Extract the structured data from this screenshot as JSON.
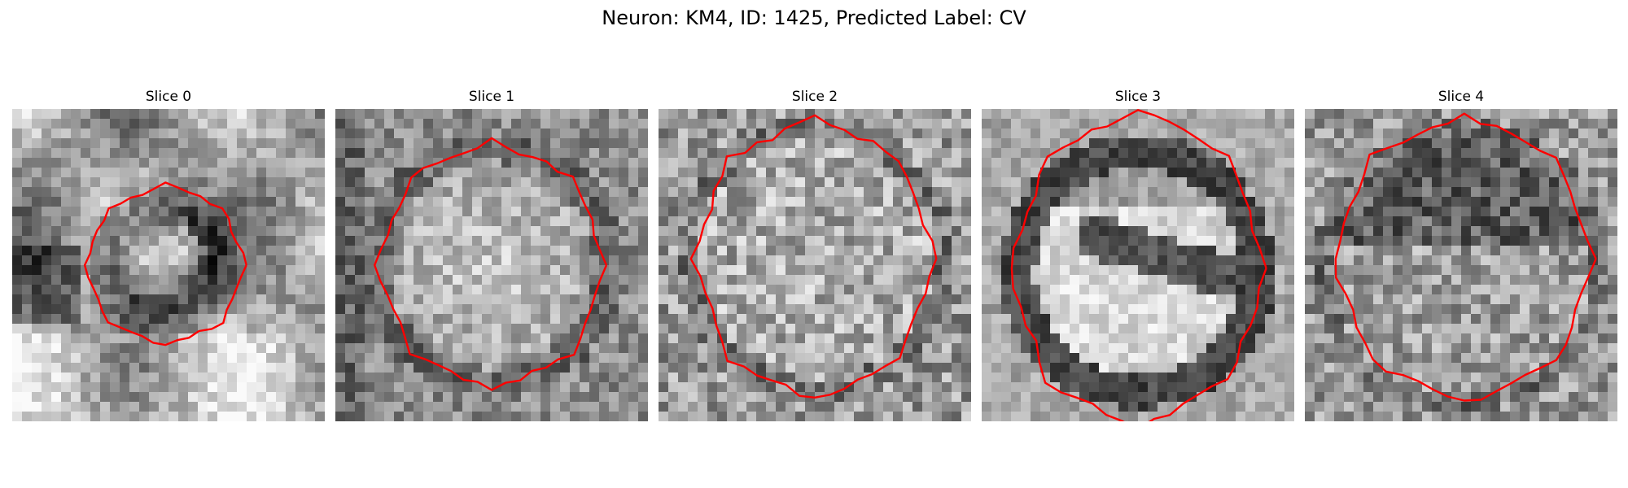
{
  "figure": {
    "title": "Neuron: KM4, ID: 1425, Predicted Label: CV",
    "panels": [
      {
        "label": "Slice 0",
        "image_description": "grayscale microscopy patch with a small dark ring-shaped object outlined in red",
        "outline_color": "#ff0000"
      },
      {
        "label": "Slice 1",
        "image_description": "grayscale microscopy patch with a large bright round object outlined in red",
        "outline_color": "#ff0000"
      },
      {
        "label": "Slice 2",
        "image_description": "grayscale microscopy patch with a large mottled round object outlined in red",
        "outline_color": "#ff0000"
      },
      {
        "label": "Slice 3",
        "image_description": "grayscale microscopy patch with a bright round vesicle containing a dark central band outlined in red",
        "outline_color": "#ff0000"
      },
      {
        "label": "Slice 4",
        "image_description": "grayscale microscopy patch with a large textured round object outlined in red",
        "outline_color": "#ff0000"
      }
    ]
  }
}
